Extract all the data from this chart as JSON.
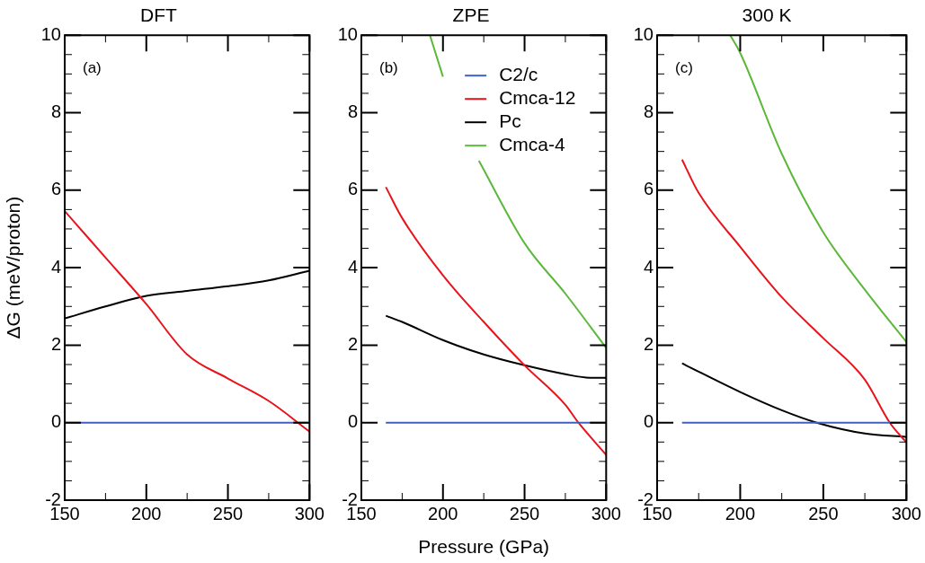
{
  "chart_data": [
    {
      "type": "line",
      "title": "DFT",
      "ylabel": "ΔG (meV/proton)",
      "annotations": [
        "(a)"
      ],
      "xlim": [
        150,
        300
      ],
      "xticks": [
        150,
        {
          "value": 175,
          "label": null
        },
        200,
        {
          "value": 225,
          "label": null
        },
        250,
        {
          "value": 275,
          "label": null
        },
        300
      ],
      "ylim": [
        -2,
        10
      ],
      "yticks": [
        -2,
        {
          "value": -1.5,
          "label": null
        },
        {
          "value": -1,
          "label": null
        },
        {
          "value": -0.5,
          "label": null
        },
        0,
        {
          "value": 0.5,
          "label": null
        },
        {
          "value": 1,
          "label": null
        },
        {
          "value": 1.5,
          "label": null
        },
        2,
        {
          "value": 2.5,
          "label": null
        },
        {
          "value": 3,
          "label": null
        },
        {
          "value": 3.5,
          "label": null
        },
        4,
        {
          "value": 4.5,
          "label": null
        },
        {
          "value": 5,
          "label": null
        },
        {
          "value": 5.5,
          "label": null
        },
        6,
        {
          "value": 6.5,
          "label": null
        },
        {
          "value": 7,
          "label": null
        },
        {
          "value": 7.5,
          "label": null
        },
        8,
        {
          "value": 8.5,
          "label": null
        },
        {
          "value": 9,
          "label": null
        },
        {
          "value": 9.5,
          "label": null
        },
        10
      ],
      "series": [
        {
          "color": "#4060bf",
          "x": [
            150,
            300
          ],
          "values": [
            0,
            0
          ]
        },
        {
          "color": "#e8141c",
          "x": [
            150,
            175,
            200,
            225,
            250,
            275,
            300
          ],
          "values": [
            5.46,
            4.26,
            3.06,
            1.76,
            1.14,
            0.56,
            -0.23
          ]
        },
        {
          "color": "#000000",
          "x": [
            150,
            175,
            200,
            225,
            250,
            275,
            300
          ],
          "values": [
            2.69,
            3.0,
            3.27,
            3.4,
            3.52,
            3.67,
            3.92
          ]
        }
      ]
    },
    {
      "type": "line",
      "title": "ZPE",
      "xlabel": "Pressure (GPa)",
      "annotations": [
        "(b)"
      ],
      "legend": "top right",
      "xlim": [
        150,
        300
      ],
      "xticks": [
        150,
        {
          "value": 175,
          "label": null
        },
        200,
        {
          "value": 225,
          "label": null
        },
        250,
        {
          "value": 275,
          "label": null
        },
        300
      ],
      "ylim": [
        -2,
        10
      ],
      "yticks": [
        -2,
        {
          "value": -1.5,
          "label": null
        },
        {
          "value": -1,
          "label": null
        },
        {
          "value": -0.5,
          "label": null
        },
        0,
        {
          "value": 0.5,
          "label": null
        },
        {
          "value": 1,
          "label": null
        },
        {
          "value": 1.5,
          "label": null
        },
        2,
        {
          "value": 2.5,
          "label": null
        },
        {
          "value": 3,
          "label": null
        },
        {
          "value": 3.5,
          "label": null
        },
        4,
        {
          "value": 4.5,
          "label": null
        },
        {
          "value": 5,
          "label": null
        },
        {
          "value": 5.5,
          "label": null
        },
        6,
        {
          "value": 6.5,
          "label": null
        },
        {
          "value": 7,
          "label": null
        },
        {
          "value": 7.5,
          "label": null
        },
        8,
        {
          "value": 8.5,
          "label": null
        },
        {
          "value": 9,
          "label": null
        },
        {
          "value": 9.5,
          "label": null
        },
        10
      ],
      "series": [
        {
          "name": "C2/c",
          "color": "#4060bf",
          "x": [
            165,
            300
          ],
          "values": [
            0,
            0
          ]
        },
        {
          "name": "Cmca-12",
          "color": "#e8141c",
          "x": [
            165,
            175,
            200,
            225,
            250,
            275,
            283,
            300
          ],
          "values": [
            6.08,
            5.28,
            3.8,
            2.6,
            1.48,
            0.46,
            0,
            -0.83
          ]
        },
        {
          "name": "Pc",
          "color": "#000000",
          "x": [
            165,
            175,
            200,
            225,
            250,
            275,
            290,
            300
          ],
          "values": [
            2.76,
            2.6,
            2.13,
            1.76,
            1.48,
            1.25,
            1.16,
            1.16
          ]
        },
        {
          "name": "Cmca-4",
          "color": "#5cb83a",
          "x": [
            192,
            200,
            210,
            222,
            250,
            275,
            300
          ],
          "values": [
            10,
            8.93,
            null,
            6.76,
            4.63,
            3.33,
            1.93
          ]
        }
      ]
    },
    {
      "type": "line",
      "title": "300 K",
      "annotations": [
        "(c)"
      ],
      "xlim": [
        150,
        300
      ],
      "xticks": [
        150,
        {
          "value": 175,
          "label": null
        },
        200,
        {
          "value": 225,
          "label": null
        },
        250,
        {
          "value": 275,
          "label": null
        },
        300
      ],
      "ylim": [
        -2,
        10
      ],
      "yticks": [
        -2,
        {
          "value": -1.5,
          "label": null
        },
        {
          "value": -1,
          "label": null
        },
        {
          "value": -0.5,
          "label": null
        },
        0,
        {
          "value": 0.5,
          "label": null
        },
        {
          "value": 1,
          "label": null
        },
        {
          "value": 1.5,
          "label": null
        },
        2,
        {
          "value": 2.5,
          "label": null
        },
        {
          "value": 3,
          "label": null
        },
        {
          "value": 3.5,
          "label": null
        },
        4,
        {
          "value": 4.5,
          "label": null
        },
        {
          "value": 5,
          "label": null
        },
        {
          "value": 5.5,
          "label": null
        },
        6,
        {
          "value": 6.5,
          "label": null
        },
        {
          "value": 7,
          "label": null
        },
        {
          "value": 7.5,
          "label": null
        },
        8,
        {
          "value": 8.5,
          "label": null
        },
        {
          "value": 9,
          "label": null
        },
        {
          "value": 9.5,
          "label": null
        },
        10
      ],
      "series": [
        {
          "color": "#4060bf",
          "x": [
            165,
            300
          ],
          "values": [
            0,
            0
          ]
        },
        {
          "color": "#e8141c",
          "x": [
            165,
            175,
            200,
            225,
            250,
            275,
            290,
            300
          ],
          "values": [
            6.79,
            5.93,
            4.54,
            3.24,
            2.18,
            1.11,
            0,
            -0.51
          ]
        },
        {
          "color": "#000000",
          "x": [
            165,
            200,
            225,
            246,
            275,
            300
          ],
          "values": [
            1.53,
            0.79,
            0.32,
            0,
            -0.28,
            -0.37
          ]
        },
        {
          "color": "#5cb83a",
          "x": [
            194,
            200,
            225,
            250,
            275,
            300
          ],
          "values": [
            10,
            9.54,
            6.94,
            4.91,
            3.43,
            2.08
          ]
        }
      ]
    }
  ]
}
